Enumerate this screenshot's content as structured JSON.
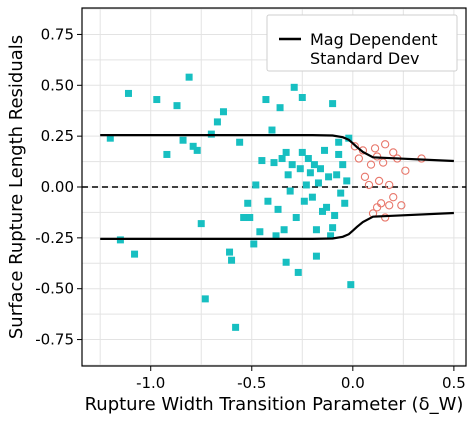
{
  "chart_data": {
    "type": "scatter",
    "xlabel": "Rupture Width Transition Parameter (δ_W)",
    "ylabel": "Surface Rupture Length Residuals",
    "xlim": [
      -1.34,
      0.56
    ],
    "ylim": [
      -0.88,
      0.88
    ],
    "xticks": [
      -1.0,
      -0.5,
      0.0,
      0.5
    ],
    "xtick_labels": [
      "-1.0",
      "-0.5",
      "0.0",
      "0.5"
    ],
    "yticks": [
      -0.75,
      -0.5,
      -0.25,
      0.0,
      0.25,
      0.5,
      0.75
    ],
    "ytick_labels": [
      "-0.75",
      "-0.50",
      "-0.25",
      "0.00",
      "0.25",
      "0.50",
      "0.75"
    ],
    "grid": true,
    "legend": {
      "position": "top-right",
      "entries": [
        "Mag Dependent\nStandard Dev"
      ]
    },
    "reference_line": {
      "y": 0.0,
      "style": "dashed",
      "color": "#000000"
    },
    "series": [
      {
        "name": "",
        "marker": "square-filled",
        "color": "#17bfc1",
        "points": [
          [
            -1.2,
            0.24
          ],
          [
            -1.15,
            -0.26
          ],
          [
            -1.11,
            0.46
          ],
          [
            -1.08,
            -0.33
          ],
          [
            -0.97,
            0.43
          ],
          [
            -0.92,
            0.16
          ],
          [
            -0.87,
            0.4
          ],
          [
            -0.84,
            0.23
          ],
          [
            -0.81,
            0.54
          ],
          [
            -0.79,
            0.2
          ],
          [
            -0.77,
            0.18
          ],
          [
            -0.75,
            -0.18
          ],
          [
            -0.73,
            -0.55
          ],
          [
            -0.7,
            0.26
          ],
          [
            -0.67,
            0.32
          ],
          [
            -0.64,
            0.37
          ],
          [
            -0.61,
            -0.32
          ],
          [
            -0.6,
            -0.36
          ],
          [
            -0.58,
            -0.69
          ],
          [
            -0.56,
            0.22
          ],
          [
            -0.54,
            -0.15
          ],
          [
            -0.52,
            -0.08
          ],
          [
            -0.51,
            -0.15
          ],
          [
            -0.49,
            -0.28
          ],
          [
            -0.48,
            0.01
          ],
          [
            -0.46,
            -0.22
          ],
          [
            -0.45,
            0.13
          ],
          [
            -0.43,
            0.43
          ],
          [
            -0.42,
            -0.07
          ],
          [
            -0.4,
            0.28
          ],
          [
            -0.39,
            0.12
          ],
          [
            -0.38,
            -0.24
          ],
          [
            -0.37,
            -0.11
          ],
          [
            -0.36,
            0.39
          ],
          [
            -0.35,
            0.14
          ],
          [
            -0.34,
            -0.21
          ],
          [
            -0.33,
            0.17
          ],
          [
            -0.32,
            0.06
          ],
          [
            -0.31,
            -0.02
          ],
          [
            -0.3,
            0.11
          ],
          [
            -0.29,
            0.49
          ],
          [
            -0.28,
            -0.15
          ],
          [
            -0.27,
            -0.42
          ],
          [
            -0.26,
            0.09
          ],
          [
            -0.25,
            0.17
          ],
          [
            -0.24,
            -0.07
          ],
          [
            -0.23,
            0.01
          ],
          [
            -0.22,
            0.14
          ],
          [
            -0.21,
            0.07
          ],
          [
            -0.2,
            -0.05
          ],
          [
            -0.19,
            0.11
          ],
          [
            -0.18,
            -0.21
          ],
          [
            -0.17,
            0.02
          ],
          [
            -0.16,
            0.09
          ],
          [
            -0.15,
            -0.12
          ],
          [
            -0.14,
            0.18
          ],
          [
            -0.13,
            -0.1
          ],
          [
            -0.12,
            0.05
          ],
          [
            -0.11,
            -0.24
          ],
          [
            -0.1,
            -0.2
          ],
          [
            -0.09,
            -0.14
          ],
          [
            -0.08,
            0.06
          ],
          [
            -0.07,
            0.22
          ],
          [
            -0.06,
            -0.03
          ],
          [
            -0.05,
            0.11
          ],
          [
            -0.04,
            -0.08
          ],
          [
            -0.03,
            0.03
          ],
          [
            -0.02,
            0.24
          ],
          [
            -0.01,
            -0.48
          ],
          [
            -0.1,
            0.41
          ],
          [
            -0.25,
            0.44
          ],
          [
            -0.33,
            -0.37
          ],
          [
            -0.18,
            -0.34
          ],
          [
            -0.07,
            0.16
          ]
        ]
      },
      {
        "name": "",
        "marker": "circle-open",
        "color": "#e8776b",
        "points": [
          [
            0.01,
            0.2
          ],
          [
            0.03,
            0.14
          ],
          [
            0.05,
            0.18
          ],
          [
            0.06,
            0.05
          ],
          [
            0.08,
            0.01
          ],
          [
            0.09,
            0.11
          ],
          [
            0.1,
            -0.13
          ],
          [
            0.11,
            0.19
          ],
          [
            0.12,
            0.15
          ],
          [
            0.12,
            -0.1
          ],
          [
            0.13,
            0.03
          ],
          [
            0.14,
            -0.08
          ],
          [
            0.15,
            0.12
          ],
          [
            0.16,
            -0.15
          ],
          [
            0.16,
            0.21
          ],
          [
            0.18,
            -0.09
          ],
          [
            0.18,
            0.01
          ],
          [
            0.2,
            0.17
          ],
          [
            0.2,
            -0.05
          ],
          [
            0.22,
            0.14
          ],
          [
            0.24,
            -0.09
          ],
          [
            0.26,
            0.08
          ],
          [
            0.34,
            0.14
          ]
        ]
      }
    ],
    "std_curve": {
      "name": "Mag Dependent\nStandard Dev",
      "color": "#000000",
      "x": [
        -1.25,
        -0.2,
        -0.1,
        -0.05,
        -0.02,
        0.0,
        0.02,
        0.05,
        0.1,
        0.5
      ],
      "upper": [
        0.255,
        0.255,
        0.253,
        0.245,
        0.232,
        0.215,
        0.196,
        0.172,
        0.146,
        0.128
      ],
      "lower": [
        -0.255,
        -0.255,
        -0.253,
        -0.245,
        -0.232,
        -0.215,
        -0.196,
        -0.172,
        -0.146,
        -0.128
      ]
    }
  }
}
